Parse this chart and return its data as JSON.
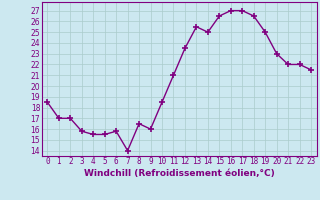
{
  "x": [
    0,
    1,
    2,
    3,
    4,
    5,
    6,
    7,
    8,
    9,
    10,
    11,
    12,
    13,
    14,
    15,
    16,
    17,
    18,
    19,
    20,
    21,
    22,
    23
  ],
  "y": [
    18.5,
    17.0,
    17.0,
    15.8,
    15.5,
    15.5,
    15.8,
    14.0,
    16.5,
    16.0,
    18.5,
    21.0,
    23.5,
    25.5,
    25.0,
    26.5,
    27.0,
    27.0,
    26.5,
    25.0,
    23.0,
    22.0,
    22.0,
    21.5
  ],
  "line_color": "#800080",
  "marker": "+",
  "marker_size": 5,
  "linewidth": 1.0,
  "xlabel": "Windchill (Refroidissement éolien,°C)",
  "xlabel_fontsize": 6.5,
  "ylabel_ticks": [
    14,
    15,
    16,
    17,
    18,
    19,
    20,
    21,
    22,
    23,
    24,
    25,
    26,
    27
  ],
  "ylim": [
    13.5,
    27.8
  ],
  "xlim": [
    -0.5,
    23.5
  ],
  "xtick_labels": [
    "0",
    "1",
    "2",
    "3",
    "4",
    "5",
    "6",
    "7",
    "8",
    "9",
    "10",
    "11",
    "12",
    "13",
    "14",
    "15",
    "16",
    "17",
    "18",
    "19",
    "20",
    "21",
    "22",
    "23"
  ],
  "background_color": "#cce8f0",
  "grid_color": "#aacccc",
  "tick_fontsize": 5.5,
  "label_color": "#800080",
  "spine_color": "#800080"
}
